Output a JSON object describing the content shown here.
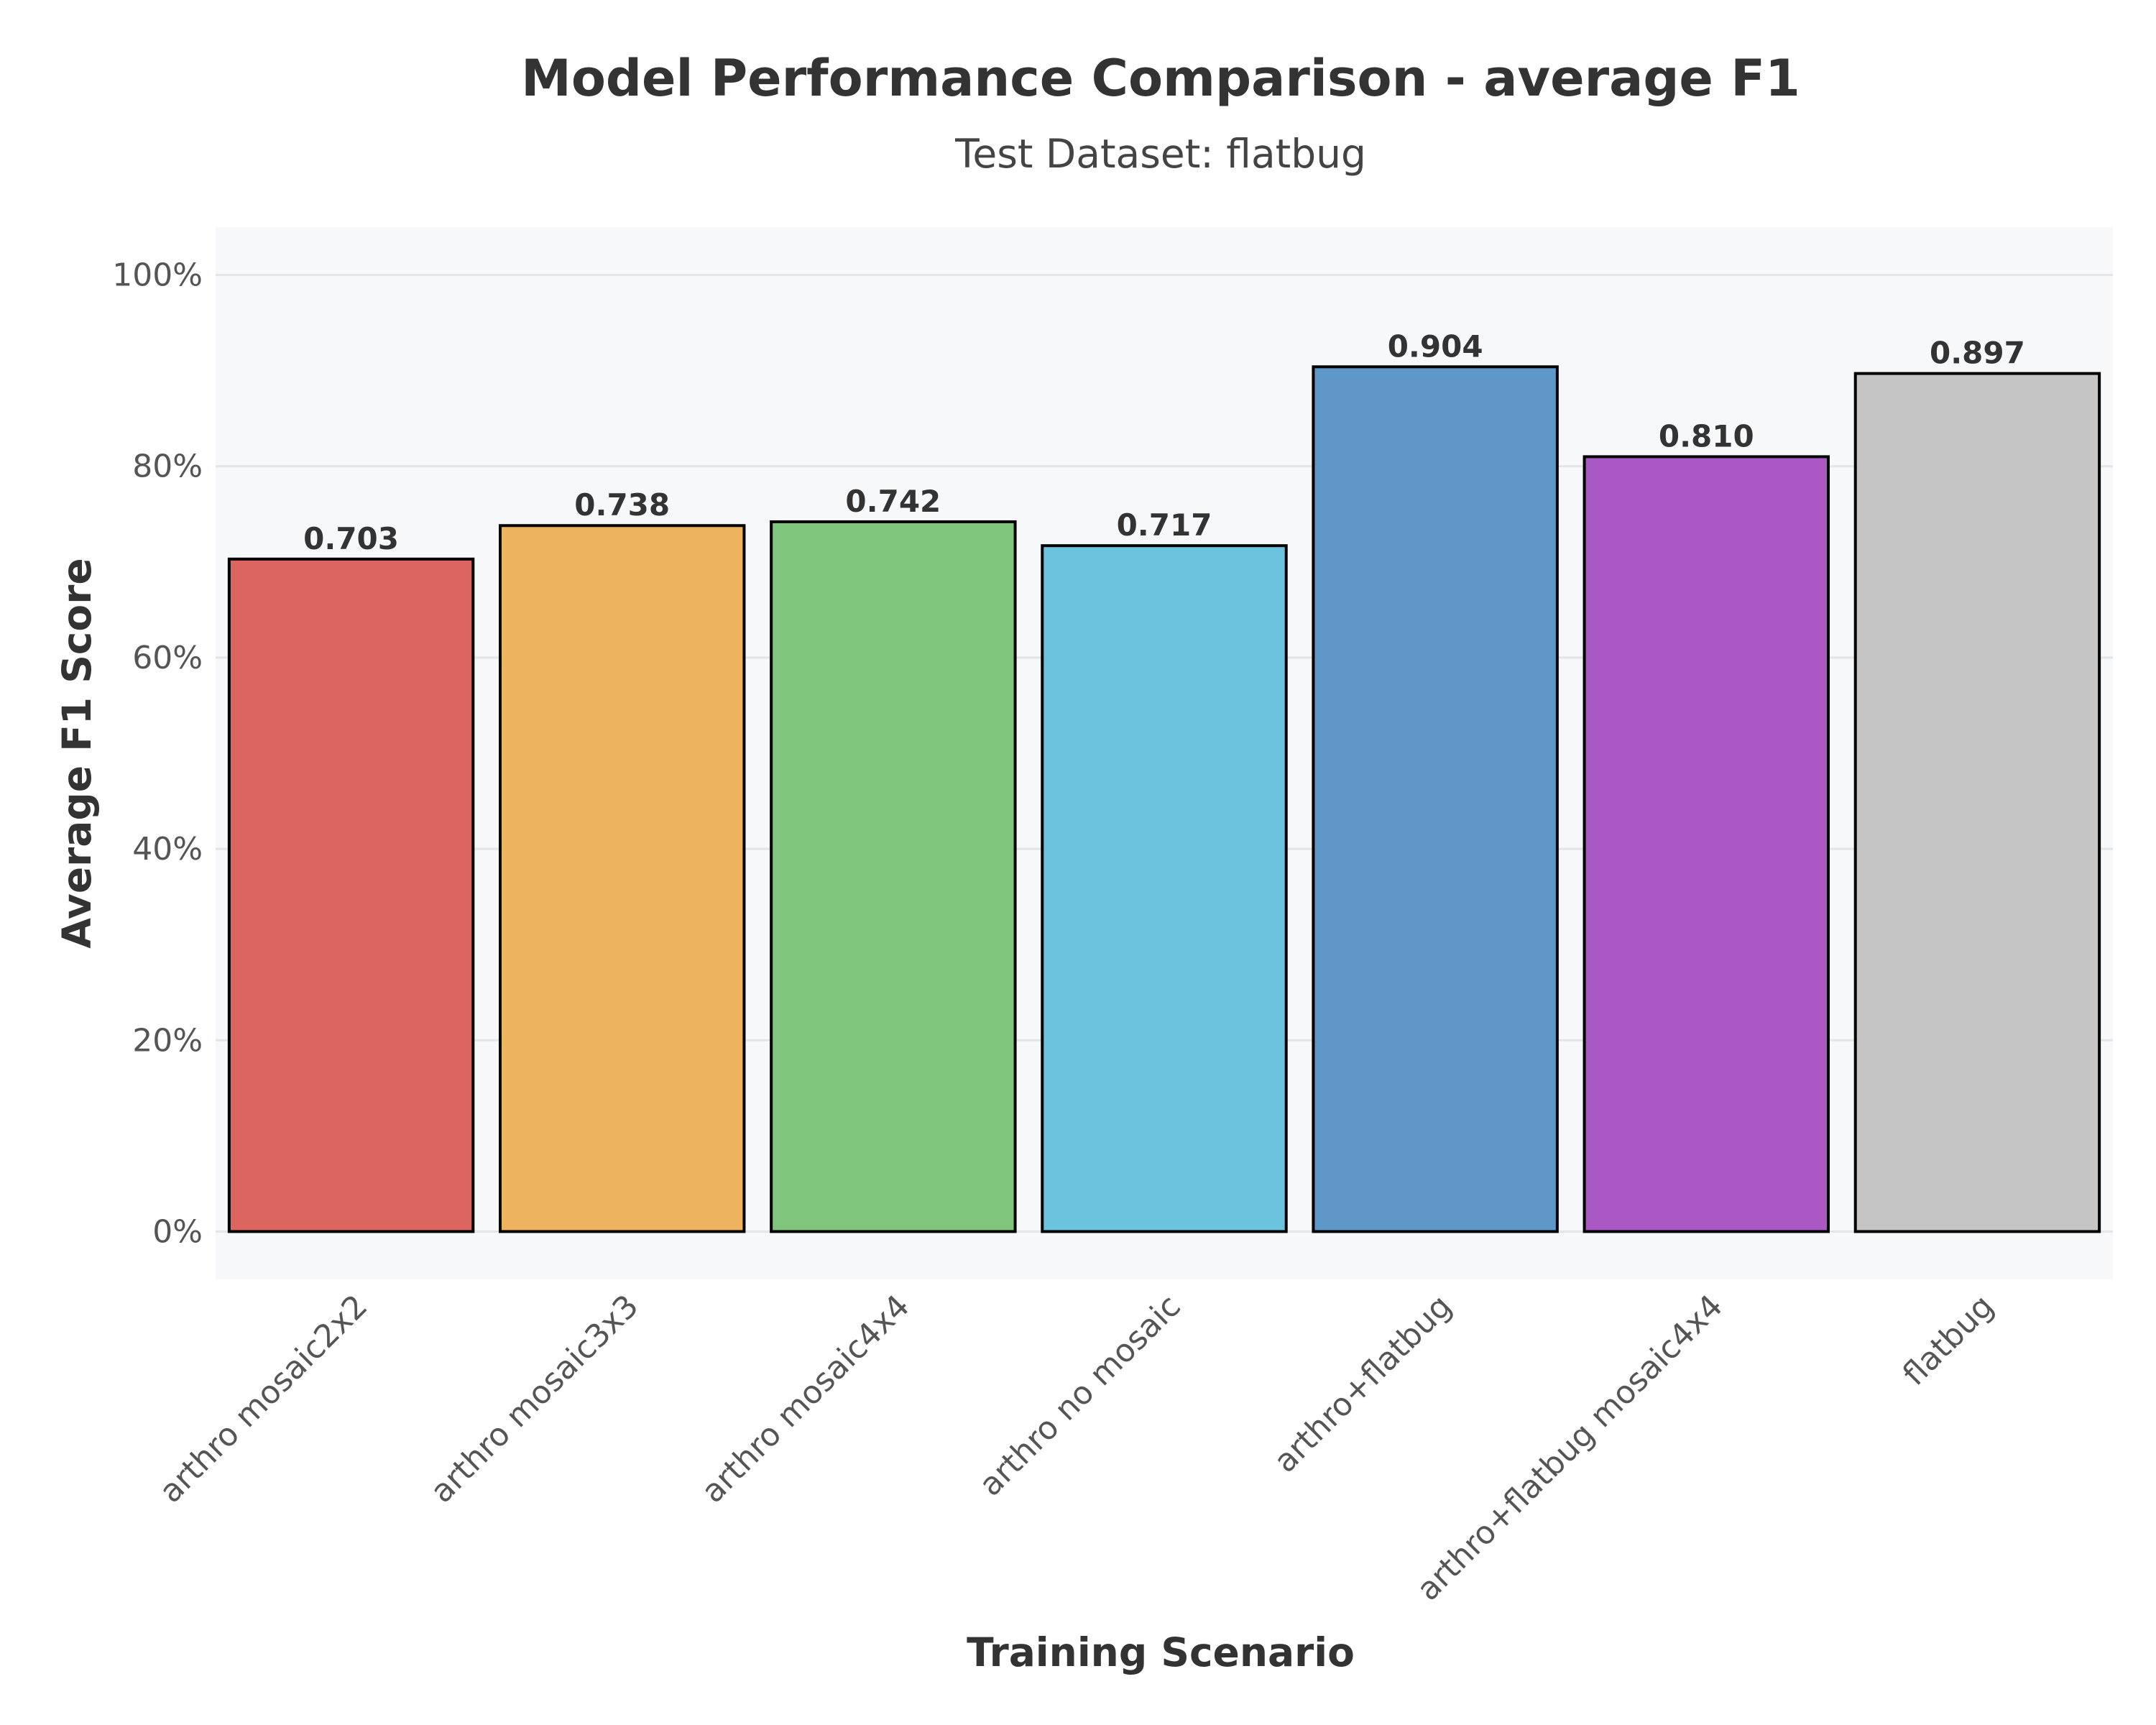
{
  "chart_data": {
    "type": "bar",
    "title": "Model Performance Comparison - average F1",
    "subtitle": "Test Dataset: flatbug",
    "xlabel": "Training Scenario",
    "ylabel": "Average F1 Score",
    "categories": [
      "arthro mosaic2x2",
      "arthro mosaic3x3",
      "arthro mosaic4x4",
      "arthro no mosaic",
      "arthro+flatbug",
      "arthro+flatbug mosaic4x4",
      "flatbug"
    ],
    "values": [
      0.703,
      0.738,
      0.742,
      0.717,
      0.904,
      0.81,
      0.897
    ],
    "value_labels": [
      "0.703",
      "0.738",
      "0.742",
      "0.717",
      "0.904",
      "0.810",
      "0.897"
    ],
    "colors": [
      "#dd6560",
      "#eeb35e",
      "#7fc57c",
      "#6bc3de",
      "#5e98c9",
      "#a958c4",
      "#c5c5c5"
    ],
    "ylim": [
      -0.05,
      1.05
    ],
    "yticks": [
      0,
      0.2,
      0.4,
      0.6,
      0.8,
      1.0
    ],
    "ytick_labels": [
      "0%",
      "20%",
      "40%",
      "60%",
      "80%",
      "100%"
    ],
    "grid": true,
    "background": "#f7f8fa",
    "bar_edge_color": "#000000"
  }
}
